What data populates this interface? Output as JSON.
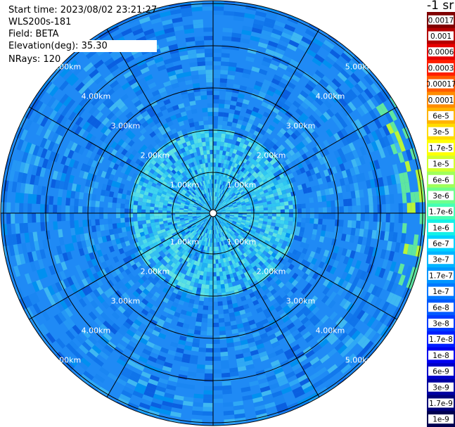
{
  "header": {
    "start_time": "Start time: 2023/08/02 23:21:27",
    "station": "WLS200s-181",
    "field": "Field: BETA",
    "elevation_label": "Elevation(deg):",
    "elevation_value": "35.30",
    "nrays": "NRays: 120"
  },
  "plot": {
    "ring_labels": [
      "1.00km",
      "2.00km",
      "3.00km",
      "4.00km",
      "5.00km"
    ],
    "radial_angles_deg": [
      0,
      30,
      60,
      90,
      120,
      150,
      180,
      210,
      240,
      270,
      300,
      330
    ]
  },
  "colorbar": {
    "unit": "-1 sr",
    "ticks": [
      "0.0017",
      "0.001",
      "0.0006",
      "0.0003",
      "0.00017",
      "0.0001",
      "6e-5",
      "3e-5",
      "1.7e-5",
      "1e-5",
      "6e-6",
      "3e-6",
      "1.7e-6",
      "1e-6",
      "6e-7",
      "3e-7",
      "1.7e-7",
      "1e-7",
      "6e-8",
      "3e-8",
      "1.7e-8",
      "1e-8",
      "6e-9",
      "3e-9",
      "1.7e-9",
      "1e-9"
    ],
    "colors": [
      "#7f0000",
      "#b40000",
      "#e60000",
      "#ff1e00",
      "#ff5a00",
      "#ff8c00",
      "#ffb400",
      "#ffdc00",
      "#ffff00",
      "#d2ff2d",
      "#a0ff5a",
      "#6eff8c",
      "#46ffb4",
      "#14f0e6",
      "#00d2ff",
      "#00b4ff",
      "#0096ff",
      "#0078ff",
      "#005aff",
      "#003cff",
      "#001eff",
      "#0000f0",
      "#0000c8",
      "#0000a0",
      "#000078",
      "#000050"
    ]
  }
}
